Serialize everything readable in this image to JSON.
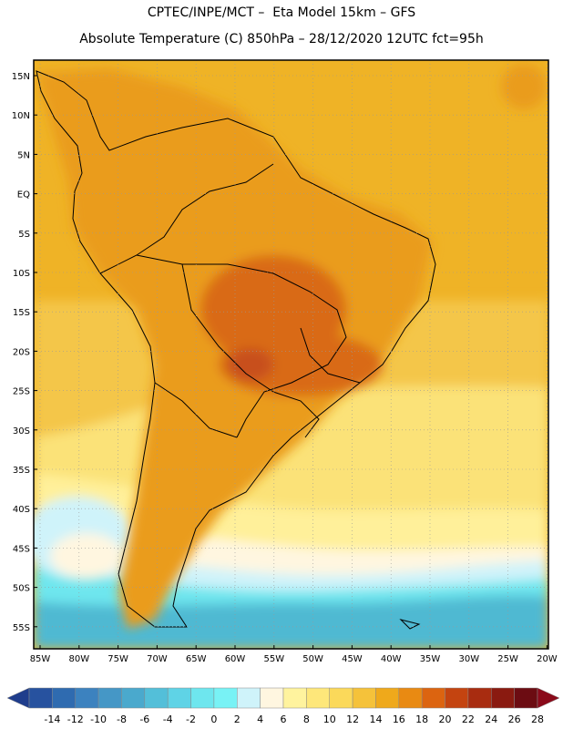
{
  "title_line1": "CPTEC/INPE/MCT –  Eta Model 15km – GFS",
  "title_line2": "Absolute Temperature (C) 850hPa – 28/12/2020 12UTC fct=95h",
  "lat_labels": [
    "15N",
    "10N",
    "5N",
    "EQ",
    "5S",
    "10S",
    "15S",
    "20S",
    "25S",
    "30S",
    "35S",
    "40S",
    "45S",
    "50S",
    "55S"
  ],
  "lon_labels": [
    "85W",
    "80W",
    "75W",
    "70W",
    "65W",
    "60W",
    "55W",
    "50W",
    "45W",
    "40W",
    "35W",
    "30W",
    "25W",
    "20W"
  ],
  "colorbar": {
    "labels": [
      "-14",
      "-12",
      "-10",
      "-8",
      "-6",
      "-4",
      "-2",
      "0",
      "2",
      "4",
      "6",
      "8",
      "10",
      "12",
      "14",
      "16",
      "18",
      "20",
      "22",
      "24",
      "26",
      "28"
    ],
    "colors": [
      "#1f3d8c",
      "#27529f",
      "#2f6bb0",
      "#3c82bf",
      "#4597c6",
      "#4aa9cd",
      "#53bfd9",
      "#5fd3e6",
      "#6ee6ee",
      "#78f2f5",
      "#cff3fa",
      "#fff6e0",
      "#fff39e",
      "#fee77a",
      "#fbd95a",
      "#f5c23a",
      "#efa91b",
      "#e98a12",
      "#dc6410",
      "#c44410",
      "#a82c10",
      "#8a1a10",
      "#6c0c12",
      "#8a0a1a"
    ]
  },
  "map_colors": {
    "ocean_tropical": "#efb326",
    "ocean_warm": "#f4c64a",
    "ocean_mild": "#fbe278",
    "ocean_pale": "#fff09a",
    "cool_white": "#fff6e0",
    "cold_light": "#cff3fa",
    "cold_cyan": "#6ee6ee",
    "cold_blue": "#4fb9d2",
    "land_warm": "#ea9c1a",
    "land_hot": "#d96a12",
    "land_hotter": "#c8501a"
  }
}
